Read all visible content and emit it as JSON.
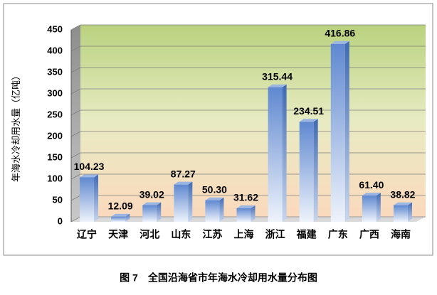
{
  "chart_data": {
    "type": "bar",
    "caption": "图 7　全国沿海省市年海水冷却用水量分布图",
    "y_label": "年海水冷却用水量（亿吨）",
    "categories": [
      "辽宁",
      "天津",
      "河北",
      "山东",
      "江苏",
      "上海",
      "浙江",
      "福建",
      "广东",
      "广西",
      "海南"
    ],
    "values": [
      104.23,
      12.09,
      39.02,
      87.27,
      50.3,
      31.62,
      315.44,
      234.51,
      416.86,
      61.4,
      38.82
    ],
    "value_labels": [
      "104.23",
      "12.09",
      "39.02",
      "87.27",
      "50.30",
      "31.62",
      "315.44",
      "234.51",
      "416.86",
      "61.40",
      "38.82"
    ],
    "color": "#6f95d6",
    "ylim": [
      0,
      450
    ],
    "yticks": [
      0,
      50,
      100,
      150,
      200,
      250,
      300,
      350,
      400,
      450
    ],
    "grid": true
  }
}
